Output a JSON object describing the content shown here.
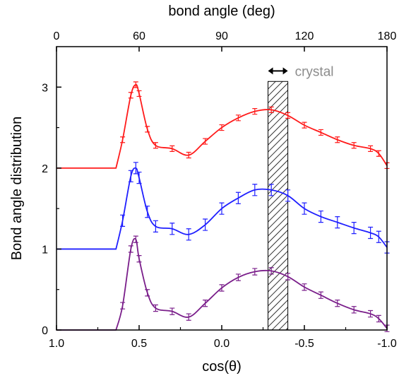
{
  "chart_data": {
    "type": "line",
    "title": "",
    "xlabel": "cos(θ)",
    "ylabel": "Bond angle distribution",
    "top_xlabel": "bond angle (deg)",
    "xlim": [
      1.0,
      -1.0
    ],
    "ylim": [
      0,
      3.5
    ],
    "x_reversed": true,
    "x_ticks": [
      1.0,
      0.5,
      0.0,
      -0.5,
      -1.0
    ],
    "x_tick_labels": [
      "1.0",
      "0.5",
      "0.0",
      "-0.5",
      "-1.0"
    ],
    "top_ticks_deg": [
      0,
      60,
      90,
      120,
      180
    ],
    "top_tick_labels": [
      "0",
      "60",
      "90",
      "120",
      "180"
    ],
    "y_ticks": [
      0,
      1,
      2,
      3
    ],
    "y_tick_labels": [
      "0",
      "1",
      "2",
      "3"
    ],
    "grid": false,
    "legend": "none",
    "crystal_band": {
      "x_range": [
        -0.28,
        -0.4
      ],
      "label": "crystal",
      "color": "#8c8c8c"
    },
    "x": [
      0.64,
      0.6,
      0.55,
      0.52,
      0.5,
      0.45,
      0.4,
      0.3,
      0.2,
      0.1,
      0.0,
      -0.1,
      -0.2,
      -0.3,
      -0.4,
      -0.5,
      -0.6,
      -0.7,
      -0.8,
      -0.9,
      -0.95,
      -1.0
    ],
    "series": [
      {
        "color": "#ff1a1a",
        "offset": 2.0,
        "error": 0.035,
        "values": [
          2.0,
          2.35,
          2.9,
          3.03,
          2.92,
          2.48,
          2.28,
          2.24,
          2.16,
          2.33,
          2.5,
          2.62,
          2.7,
          2.72,
          2.65,
          2.53,
          2.44,
          2.35,
          2.28,
          2.24,
          2.18,
          2.03
        ]
      },
      {
        "color": "#1f1fff",
        "offset": 1.0,
        "error": 0.07,
        "values": [
          1.0,
          1.35,
          1.9,
          2.0,
          1.88,
          1.46,
          1.28,
          1.25,
          1.18,
          1.3,
          1.5,
          1.63,
          1.73,
          1.73,
          1.66,
          1.5,
          1.4,
          1.33,
          1.26,
          1.2,
          1.15,
          1.02
        ]
      },
      {
        "color": "#7a1e8a",
        "offset": 0.0,
        "error": 0.04,
        "values": [
          0.0,
          0.3,
          1.0,
          1.12,
          0.88,
          0.46,
          0.27,
          0.23,
          0.16,
          0.33,
          0.52,
          0.65,
          0.72,
          0.73,
          0.66,
          0.53,
          0.43,
          0.33,
          0.25,
          0.2,
          0.14,
          0.02
        ]
      }
    ]
  }
}
